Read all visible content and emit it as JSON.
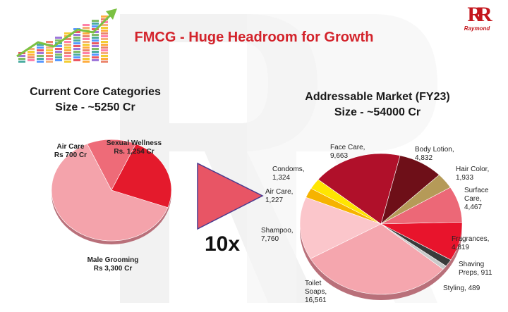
{
  "title": "FMCG - Huge Headroom for Growth",
  "brand": {
    "monogram": "RR",
    "name": "Raymond"
  },
  "left_panel": {
    "heading_line1": "Current Core Categories",
    "heading_line2": "Size - ~5250 Cr"
  },
  "right_panel": {
    "heading_line1": "Addressable Market (FY23)",
    "heading_line2": "Size - ~54000 Cr"
  },
  "multiplier": "10x",
  "colors": {
    "title": "#d3232b",
    "arrow": "#e85565",
    "arrow_outline": "#4a3b8f"
  },
  "chart_data": [
    {
      "type": "pie",
      "title": "",
      "slices": [
        {
          "name": "Male Grooming",
          "value": 3300,
          "label_line1": "Male Grooming",
          "label_line2": "Rs 3,300 Cr",
          "color": "#f4a3ab"
        },
        {
          "name": "Air Care",
          "value": 700,
          "label_line1": "Air Care",
          "label_line2": "Rs 700 Cr",
          "color": "#ee6b78"
        },
        {
          "name": "Sexual Wellness",
          "value": 1254,
          "label_line1": "Sexual Wellness",
          "label_line2": "Rs. 1,254 Cr",
          "color": "#e41a2c"
        }
      ]
    },
    {
      "type": "pie",
      "title": "",
      "slices": [
        {
          "name": "Toilet Soaps",
          "value": 16561,
          "label_line1": "Toilet",
          "label_line2": "Soaps,",
          "label_line3": "16,561",
          "color": "#f5a6ae"
        },
        {
          "name": "Shampoo",
          "value": 7760,
          "label_line1": "Shampoo,",
          "label_line2": "7,760",
          "color": "#fbc6cb"
        },
        {
          "name": "Air Care",
          "value": 1227,
          "label_line1": "Air Care,",
          "label_line2": "1,227",
          "color": "#f6b300"
        },
        {
          "name": "Condoms",
          "value": 1324,
          "label_line1": "Condoms,",
          "label_line2": "1,324",
          "color": "#ffe600"
        },
        {
          "name": "Face Care",
          "value": 9663,
          "label_line1": "Face Care,",
          "label_line2": "9,663",
          "color": "#b0102a"
        },
        {
          "name": "Body Lotion",
          "value": 4832,
          "label_line1": "Body Lotion,",
          "label_line2": "4,832",
          "color": "#6e0f18"
        },
        {
          "name": "Hair Color",
          "value": 1933,
          "label_line1": "Hair Color,",
          "label_line2": "1,933",
          "color": "#b59a58"
        },
        {
          "name": "Surface Care",
          "value": 4467,
          "label_line1": "Surface",
          "label_line2": "Care,",
          "label_line3": "4,467",
          "color": "#ec6877"
        },
        {
          "name": "Fragrances",
          "value": 4819,
          "label_line1": "Fragrances,",
          "label_line2": "4,819",
          "color": "#e8142c"
        },
        {
          "name": "Shaving Preps",
          "value": 911,
          "label_line1": "Shaving",
          "label_line2": "Preps, 911",
          "color": "#3a3a3a"
        },
        {
          "name": "Styling",
          "value": 489,
          "label_line1": "Styling, 489",
          "color": "#c9c9c9"
        }
      ]
    }
  ]
}
